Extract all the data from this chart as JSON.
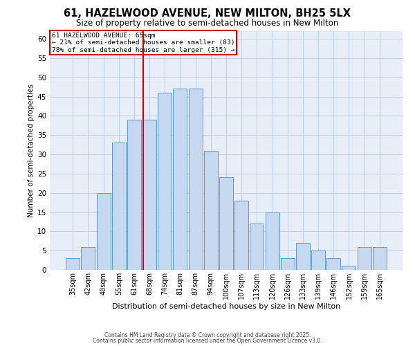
{
  "title": "61, HAZELWOOD AVENUE, NEW MILTON, BH25 5LX",
  "subtitle": "Size of property relative to semi-detached houses in New Milton",
  "xlabel": "Distribution of semi-detached houses by size in New Milton",
  "ylabel": "Number of semi-detached properties",
  "bar_labels": [
    "35sqm",
    "42sqm",
    "48sqm",
    "55sqm",
    "61sqm",
    "68sqm",
    "74sqm",
    "81sqm",
    "87sqm",
    "94sqm",
    "100sqm",
    "107sqm",
    "113sqm",
    "120sqm",
    "126sqm",
    "133sqm",
    "139sqm",
    "146sqm",
    "152sqm",
    "159sqm",
    "165sqm"
  ],
  "bar_values": [
    3,
    6,
    20,
    33,
    39,
    39,
    46,
    47,
    47,
    31,
    24,
    18,
    12,
    15,
    3,
    7,
    5,
    3,
    1,
    6,
    6
  ],
  "bar_color": "#c5d8f0",
  "bar_edgecolor": "#5b9bd5",
  "redline_color": "#cc0000",
  "annotation_title": "61 HAZELWOOD AVENUE: 65sqm",
  "annotation_line1": "← 21% of semi-detached houses are smaller (83)",
  "annotation_line2": "78% of semi-detached houses are larger (315) →",
  "annotation_box_facecolor": "#ffffff",
  "annotation_box_edgecolor": "#cc0000",
  "ylim": [
    0,
    62
  ],
  "yticks": [
    0,
    5,
    10,
    15,
    20,
    25,
    30,
    35,
    40,
    45,
    50,
    55,
    60
  ],
  "bg_color": "#e8eef8",
  "grid_color": "#b8c8e0",
  "footer1": "Contains HM Land Registry data © Crown copyright and database right 2025.",
  "footer2": "Contains public sector information licensed under the Open Government Licence v3.0."
}
